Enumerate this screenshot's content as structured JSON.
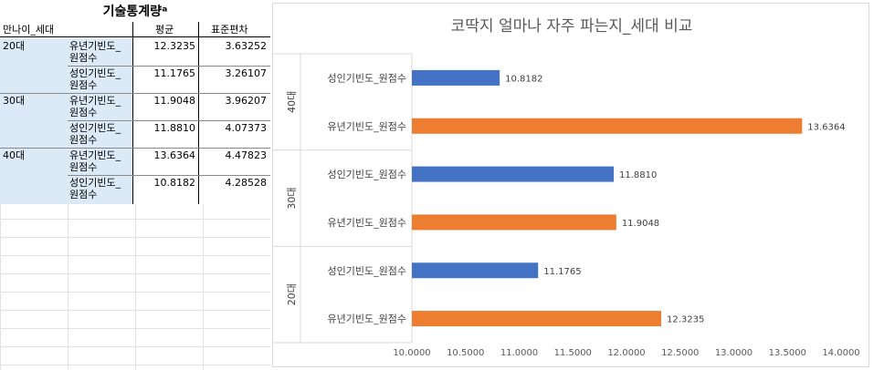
{
  "table": {
    "title": "기술통계량ᵃ",
    "headers": [
      "만나이_세대",
      "평균",
      "표준편차"
    ],
    "rows": [
      {
        "group": "20대",
        "var1": "유년기빈도_",
        "var2": "원점수",
        "mean": "12.3235",
        "sd": "3.63252"
      },
      {
        "group": "",
        "var1": "성인기빈도_",
        "var2": "원점수",
        "mean": "11.1765",
        "sd": "3.26107"
      },
      {
        "group": "30대",
        "var1": "유년기빈도_",
        "var2": "원점수",
        "mean": "11.9048",
        "sd": "3.96207"
      },
      {
        "group": "",
        "var1": "성인기빈도_",
        "var2": "원점수",
        "mean": "11.8810",
        "sd": "4.07373"
      },
      {
        "group": "40대",
        "var1": "유년기빈도_",
        "var2": "원점수",
        "mean": "13.6364",
        "sd": "4.47823"
      },
      {
        "group": "",
        "var1": "성인기빈도_",
        "var2": "원점수",
        "mean": "10.8182",
        "sd": "4.28528"
      }
    ]
  },
  "colors": {
    "blue": "#4472c4",
    "orange": "#ed7d31"
  },
  "chart_data": {
    "type": "bar",
    "orientation": "horizontal",
    "title": "코딱지 얼마나 자주 파는지_세대 비교",
    "xlim": [
      10.0,
      14.0
    ],
    "xticks": [
      "10.0000",
      "10.5000",
      "11.0000",
      "11.5000",
      "12.0000",
      "12.5000",
      "13.0000",
      "13.5000",
      "14.0000"
    ],
    "groups": [
      {
        "name": "40대",
        "bars": [
          {
            "label": "성인기빈도_원점수",
            "value": 10.8182,
            "text": "10.8182",
            "color": "#4472c4"
          },
          {
            "label": "유년기빈도_원점수",
            "value": 13.6364,
            "text": "13.6364",
            "color": "#ed7d31"
          }
        ]
      },
      {
        "name": "30대",
        "bars": [
          {
            "label": "성인기빈도_원점수",
            "value": 11.881,
            "text": "11.8810",
            "color": "#4472c4"
          },
          {
            "label": "유년기빈도_원점수",
            "value": 11.9048,
            "text": "11.9048",
            "color": "#ed7d31"
          }
        ]
      },
      {
        "name": "20대",
        "bars": [
          {
            "label": "성인기빈도_원점수",
            "value": 11.1765,
            "text": "11.1765",
            "color": "#4472c4"
          },
          {
            "label": "유년기빈도_원점수",
            "value": 12.3235,
            "text": "12.3235",
            "color": "#ed7d31"
          }
        ]
      }
    ]
  }
}
